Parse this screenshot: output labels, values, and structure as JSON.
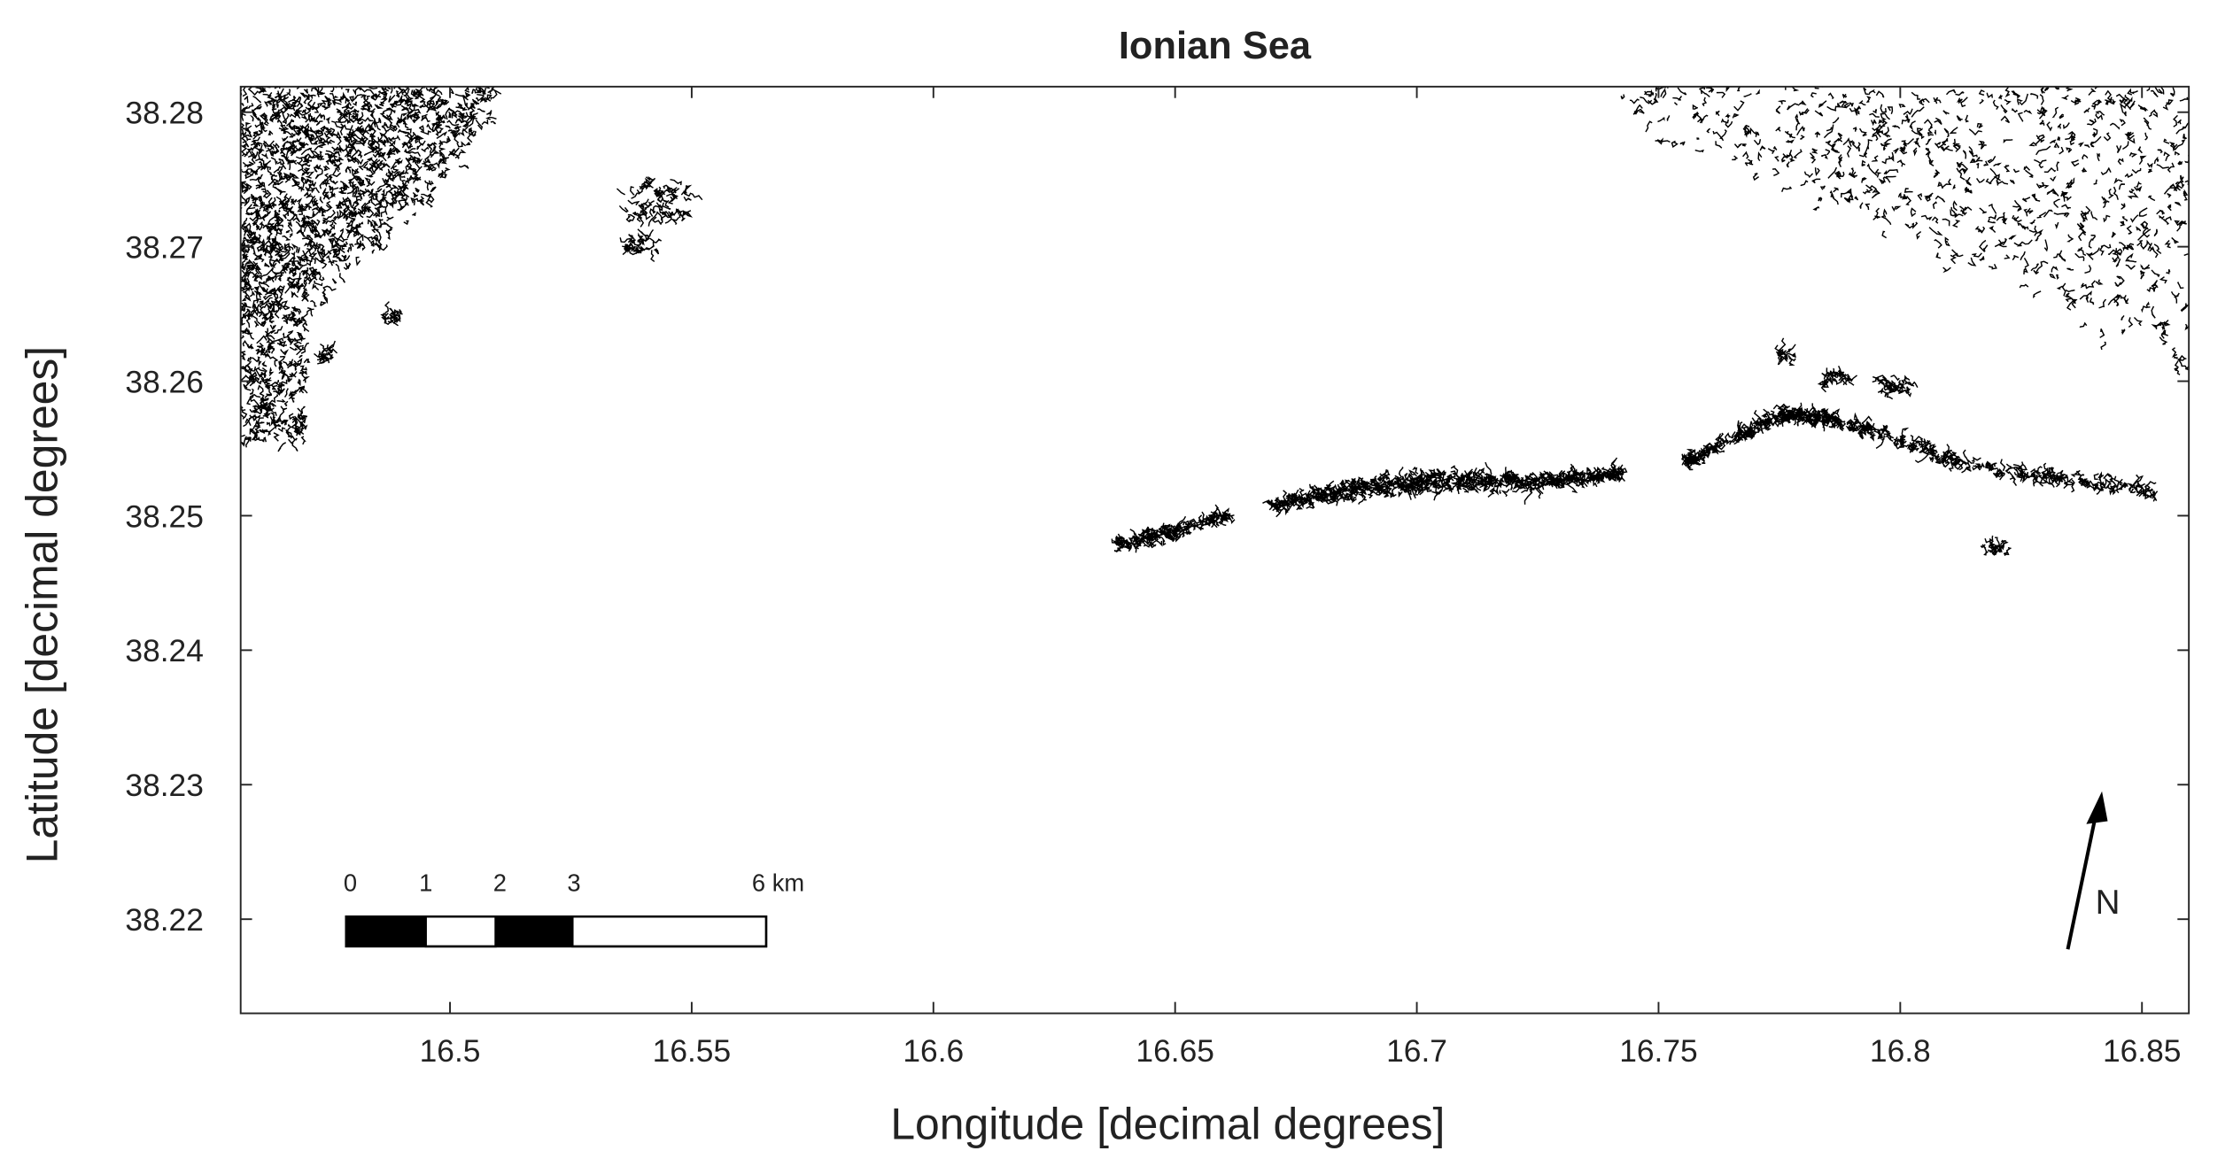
{
  "chart_data": {
    "type": "map",
    "title": "Ionian Sea",
    "x_label": "Longitude [decimal degrees]",
    "y_label": "Latitude [decimal degrees]",
    "xlim": [
      16.4567,
      16.8597
    ],
    "ylim": [
      38.213,
      38.2819
    ],
    "xticks": [
      16.5,
      16.55,
      16.6,
      16.65,
      16.7,
      16.75,
      16.8,
      16.85
    ],
    "yticks": [
      38.22,
      38.23,
      38.24,
      38.25,
      38.26,
      38.27,
      38.28
    ]
  },
  "scale_bar": {
    "labels": [
      "0",
      "1",
      "2",
      "3",
      "6 km"
    ]
  },
  "north_arrow": {
    "label": "N"
  }
}
